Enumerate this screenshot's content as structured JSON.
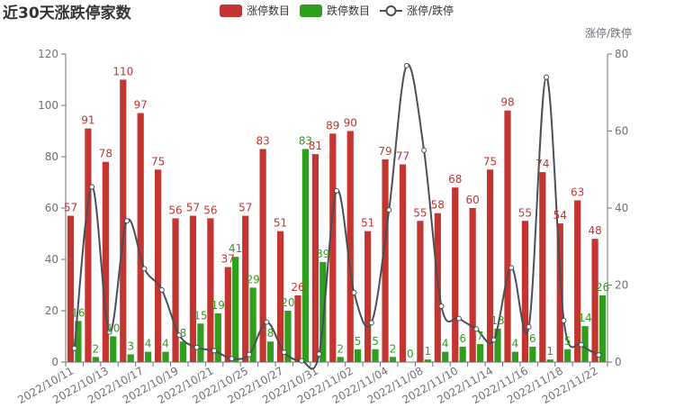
{
  "chart_data": {
    "type": "bar",
    "title": "近30天涨跌停家数",
    "categories": [
      "2022/10/11",
      "2022/10/12",
      "2022/10/13",
      "2022/10/14",
      "2022/10/17",
      "2022/10/18",
      "2022/10/19",
      "2022/10/20",
      "2022/10/21",
      "2022/10/24",
      "2022/10/25",
      "2022/10/26",
      "2022/10/27",
      "2022/10/28",
      "2022/10/31",
      "2022/11/01",
      "2022/11/02",
      "2022/11/03",
      "2022/11/04",
      "2022/11/07",
      "2022/11/08",
      "2022/11/09",
      "2022/11/10",
      "2022/11/11",
      "2022/11/14",
      "2022/11/15",
      "2022/11/16",
      "2022/11/17",
      "2022/11/18",
      "2022/11/21",
      "2022/11/22"
    ],
    "x_tick_labels": [
      "2022/10/11",
      "2022/10/13",
      "2022/10/17",
      "2022/10/19",
      "2022/10/21",
      "2022/10/25",
      "2022/10/27",
      "2022/10/31",
      "2022/11/02",
      "2022/11/04",
      "2022/11/08",
      "2022/11/10",
      "2022/11/14",
      "2022/11/16",
      "2022/11/18",
      "2022/11/22"
    ],
    "series": [
      {
        "name": "涨停数目",
        "type": "bar",
        "color": "#c23531",
        "y_axis": "left",
        "values": [
          57,
          91,
          78,
          110,
          97,
          75,
          56,
          57,
          56,
          37,
          57,
          83,
          51,
          26,
          81,
          89,
          90,
          51,
          79,
          77,
          55,
          58,
          68,
          60,
          75,
          98,
          55,
          74,
          54,
          63,
          48
        ]
      },
      {
        "name": "跌停数目",
        "type": "bar",
        "color": "#2f9e1d",
        "y_axis": "left",
        "values": [
          16,
          2,
          10,
          3,
          4,
          4,
          8,
          15,
          19,
          41,
          29,
          8,
          20,
          83,
          39,
          2,
          5,
          5,
          2,
          0,
          1,
          4,
          6,
          7,
          13,
          4,
          6,
          1,
          5,
          14,
          26
        ]
      },
      {
        "name": "涨停/跌停",
        "type": "line",
        "color": "#4a4f57",
        "y_axis": "right",
        "smooth": true,
        "values": [
          3.56,
          45.5,
          7.8,
          36.67,
          24.25,
          18.75,
          7.0,
          3.8,
          2.95,
          0.9,
          1.97,
          10.38,
          2.55,
          0.31,
          2.08,
          44.5,
          18.0,
          10.2,
          39.5,
          77.0,
          55.0,
          14.5,
          11.33,
          8.57,
          5.77,
          24.5,
          9.17,
          74.0,
          10.8,
          4.5,
          1.85
        ]
      }
    ],
    "y_left": {
      "min": 0,
      "max": 120,
      "ticks": [
        0,
        20,
        40,
        60,
        80,
        100,
        120
      ]
    },
    "y_right": {
      "name": "涨停/跌停",
      "min": 0,
      "max": 80,
      "ticks": [
        0,
        20,
        40,
        60,
        80
      ]
    },
    "legend": {
      "position": "top-center"
    },
    "grid": false
  }
}
